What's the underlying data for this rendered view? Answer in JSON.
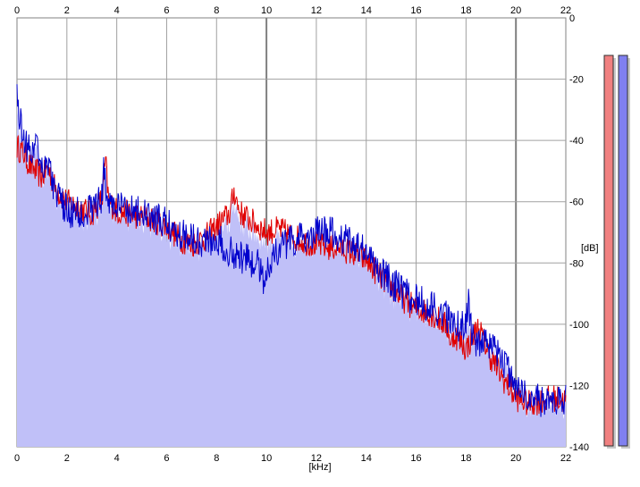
{
  "chart_data": {
    "type": "area",
    "xlabel": "[kHz]",
    "ylabel": "[dB]",
    "xlim": [
      0,
      22
    ],
    "ylim": [
      -140,
      0
    ],
    "x_ticks": [
      "0",
      "2",
      "4",
      "6",
      "8",
      "10",
      "12",
      "14",
      "16",
      "18",
      "20",
      "22"
    ],
    "y_ticks": [
      "0",
      "-20",
      "-40",
      "-60",
      "-80",
      "-100",
      "-120",
      "-140"
    ],
    "grid": true,
    "series": [
      {
        "color": "#e00000",
        "x": [
          0,
          0.25,
          0.5,
          0.75,
          1.0,
          1.25,
          1.5,
          1.75,
          2.0,
          2.5,
          3.0,
          3.5,
          4.0,
          4.5,
          5.0,
          5.5,
          6.0,
          6.5,
          7.0,
          7.5,
          8.0,
          8.5,
          8.75,
          9.0,
          9.5,
          10.0,
          10.5,
          11.0,
          11.5,
          12.0,
          12.5,
          13.0,
          13.5,
          14.0,
          14.5,
          15.0,
          15.5,
          16.0,
          16.5,
          17.0,
          17.5,
          18.0,
          18.5,
          19.0,
          19.5,
          20.0,
          20.5,
          21.0,
          21.5,
          22.0
        ],
        "values": [
          -42,
          -44,
          -48,
          -50,
          -52,
          -49,
          -55,
          -58,
          -60,
          -62,
          -64,
          -58,
          -63,
          -64,
          -65,
          -66,
          -68,
          -72,
          -74,
          -72,
          -68,
          -64,
          -60,
          -64,
          -67,
          -70,
          -69,
          -71,
          -73,
          -74,
          -75,
          -75,
          -77,
          -79,
          -84,
          -88,
          -92,
          -95,
          -96,
          -99,
          -103,
          -108,
          -101,
          -111,
          -118,
          -124,
          -126,
          -125,
          -124,
          -125
        ]
      },
      {
        "color": "#0000cc",
        "x": [
          0,
          0.25,
          0.5,
          0.75,
          1.0,
          1.25,
          1.5,
          1.75,
          2.0,
          2.5,
          3.0,
          3.5,
          4.0,
          4.5,
          5.0,
          5.5,
          6.0,
          6.5,
          7.0,
          7.5,
          8.0,
          8.5,
          9.0,
          9.5,
          10.0,
          10.5,
          11.0,
          11.5,
          12.0,
          12.5,
          13.0,
          13.5,
          14.0,
          14.5,
          15.0,
          15.5,
          16.0,
          16.5,
          17.0,
          17.5,
          18.0,
          18.5,
          19.0,
          19.5,
          20.0,
          20.5,
          21.0,
          21.5,
          22.0
        ],
        "values": [
          -28,
          -38,
          -44,
          -42,
          -48,
          -47,
          -56,
          -60,
          -63,
          -64,
          -62,
          -58,
          -62,
          -62,
          -64,
          -66,
          -67,
          -70,
          -71,
          -73,
          -72,
          -76,
          -78,
          -80,
          -82,
          -75,
          -73,
          -72,
          -70,
          -70,
          -72,
          -73,
          -77,
          -82,
          -86,
          -90,
          -92,
          -94,
          -96,
          -100,
          -101,
          -106,
          -108,
          -112,
          -120,
          -124,
          -125,
          -126,
          -124
        ]
      }
    ],
    "level_meters": [
      {
        "color": "#f08080",
        "level": 0.94
      },
      {
        "color": "#8080f0",
        "level": 0.94
      }
    ],
    "colors": {
      "fill": "#c0c0f8",
      "grid": "#a0a0a0",
      "grid_major": "#808080",
      "frame": "#808080"
    }
  }
}
